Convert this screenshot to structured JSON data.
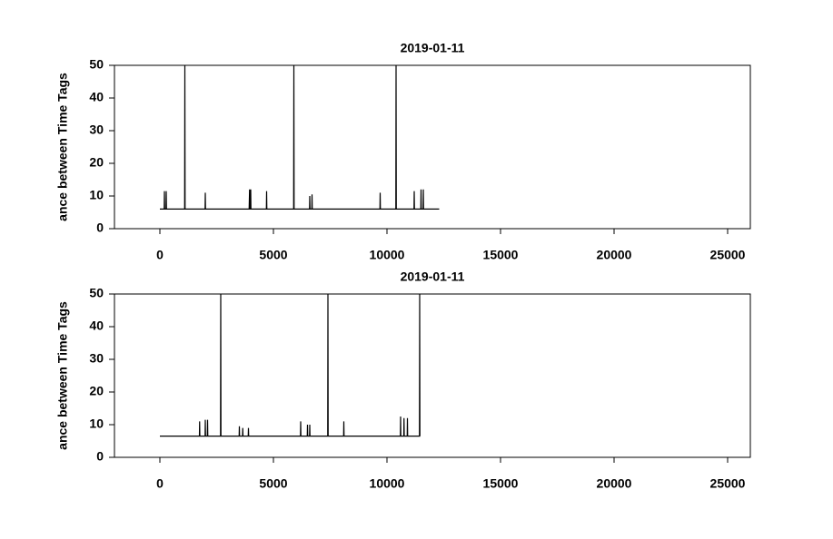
{
  "chart_data": [
    {
      "type": "line",
      "title": "2019-01-11",
      "ylabel": "ance between Time Tags",
      "color": "#000000",
      "x": [
        0,
        190,
        200,
        210,
        270,
        280,
        290,
        1090,
        1100,
        1110,
        1990,
        2000,
        2010,
        3930,
        3950,
        3970,
        3990,
        4000,
        4010,
        4690,
        4700,
        4710,
        5890,
        5900,
        5910,
        6590,
        6600,
        6610,
        6690,
        6700,
        6710,
        9690,
        9700,
        9710,
        10390,
        10400,
        10410,
        11190,
        11200,
        11210,
        11490,
        11500,
        11510,
        11590,
        11600,
        11610,
        12300
      ],
      "values": [
        6,
        6,
        11.5,
        6,
        6,
        11.5,
        6,
        6,
        50,
        6,
        6,
        11,
        6,
        6,
        12,
        6,
        6,
        12,
        6,
        6,
        11.5,
        6,
        6,
        50,
        6,
        6,
        10,
        6,
        6,
        10.5,
        6,
        6,
        11,
        6,
        6,
        50,
        6,
        6,
        11.5,
        6,
        6,
        12,
        6,
        6,
        12,
        6,
        6
      ],
      "xlim": [
        -2000,
        26000
      ],
      "xticks": [
        0,
        5000,
        10000,
        15000,
        20000,
        25000
      ],
      "ylim": [
        0,
        50
      ],
      "yticks": [
        0,
        10,
        20,
        30,
        40,
        50
      ]
    },
    {
      "type": "line",
      "title": "2019-01-11",
      "ylabel": "ance between Time Tags",
      "color": "#000000",
      "x": [
        0,
        1740,
        1750,
        1760,
        1990,
        2000,
        2010,
        2090,
        2100,
        2110,
        2670,
        2680,
        2690,
        3490,
        3500,
        3510,
        3640,
        3650,
        3660,
        3890,
        3900,
        3910,
        6190,
        6200,
        6210,
        6490,
        6500,
        6510,
        6590,
        6600,
        6610,
        7390,
        7400,
        7410,
        8090,
        8100,
        8110,
        10590,
        10600,
        10610,
        10740,
        10750,
        10760,
        10890,
        10900,
        10910,
        11430,
        11440,
        11450,
        11460
      ],
      "values": [
        6.5,
        6.5,
        11,
        6.5,
        6.5,
        11.5,
        6.5,
        6.5,
        11.5,
        6.5,
        6.5,
        50,
        6.5,
        6.5,
        9.5,
        6.5,
        6.5,
        9,
        6.5,
        6.5,
        9,
        6.5,
        6.5,
        11,
        6.5,
        6.5,
        10,
        6.5,
        6.5,
        10,
        6.5,
        6.5,
        50,
        6.5,
        6.5,
        11,
        6.5,
        6.5,
        12.5,
        6.5,
        6.5,
        12,
        6.5,
        6.5,
        12,
        6.5,
        6.5,
        50,
        6.5,
        6.5
      ],
      "xlim": [
        -2000,
        26000
      ],
      "xticks": [
        0,
        5000,
        10000,
        15000,
        20000,
        25000
      ],
      "ylim": [
        0,
        50
      ],
      "yticks": [
        0,
        10,
        20,
        30,
        40,
        50
      ]
    }
  ]
}
